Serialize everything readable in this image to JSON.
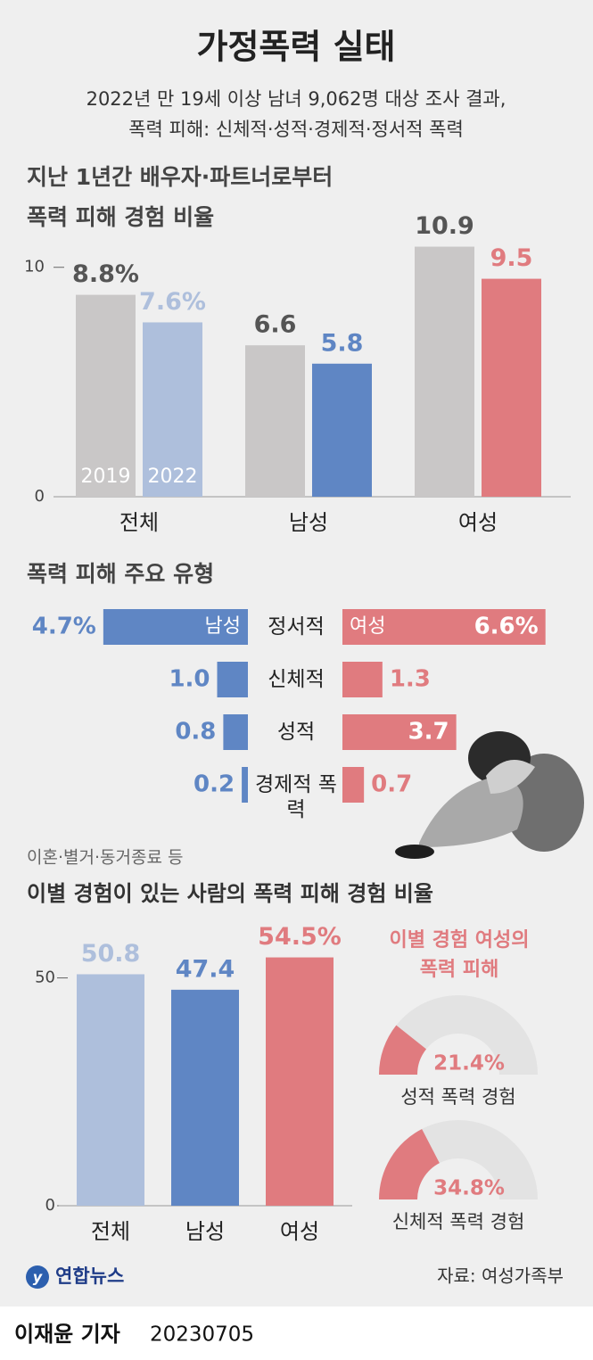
{
  "header": {
    "title": "가정폭력 실태",
    "subtitle": [
      "2022년 만 19세 이상 남녀 9,062명 대상 조사 결과,",
      "폭력 피해: 신체적·성적·경제적·정서적 폭력"
    ]
  },
  "chart_data": [
    {
      "type": "grouped-bar",
      "title": [
        "지난 1년간 배우자·파트너로부터",
        "폭력 피해 경험 비율"
      ],
      "categories": [
        "전체",
        "남성",
        "여성"
      ],
      "series": [
        {
          "name": "2019",
          "colors": [
            "#c9c7c7",
            "#c9c7c7",
            "#c9c7c7"
          ],
          "label_colors": [
            "#555555",
            "#555555",
            "#555555"
          ],
          "values": [
            8.8,
            6.6,
            10.9
          ],
          "value_labels": [
            "8.8%",
            "6.6",
            "10.9"
          ]
        },
        {
          "name": "2022",
          "colors": [
            "#aebfdc",
            "#5f86c4",
            "#e07b7f"
          ],
          "label_colors": [
            "#aebfdc",
            "#5f86c4",
            "#e07b7f"
          ],
          "values": [
            7.6,
            5.8,
            9.5
          ],
          "value_labels": [
            "7.6%",
            "5.8",
            "9.5"
          ]
        }
      ],
      "ylim": [
        0,
        11
      ],
      "yticks": [
        0,
        10
      ]
    },
    {
      "type": "diverging-bar",
      "title": "폭력 피해 주요 유형",
      "categories": [
        "정서적",
        "신체적",
        "성적",
        "경제적 폭력"
      ],
      "series": [
        {
          "name": "남성",
          "color": "#5f86c4",
          "values": [
            4.7,
            1.0,
            0.8,
            0.2
          ],
          "value_labels": [
            "4.7%",
            "1.0",
            "0.8",
            "0.2"
          ]
        },
        {
          "name": "여성",
          "color": "#e07b7f",
          "values": [
            6.6,
            1.3,
            3.7,
            0.7
          ],
          "value_labels": [
            "6.6%",
            "1.3",
            "3.7",
            "0.7"
          ]
        }
      ]
    },
    {
      "type": "bar",
      "note": "이혼·별거·동거종료 등",
      "title": "이별 경험이 있는 사람의 폭력 피해 경험 비율",
      "categories": [
        "전체",
        "남성",
        "여성"
      ],
      "values": [
        50.8,
        47.4,
        54.5
      ],
      "value_labels": [
        "50.8",
        "47.4",
        "54.5%"
      ],
      "colors": [
        "#aebfdc",
        "#5f86c4",
        "#e07b7f"
      ],
      "ylim": [
        0,
        55
      ],
      "yticks": [
        0,
        50
      ]
    },
    {
      "type": "gauge",
      "title": [
        "이별 경험 여성의",
        "폭력 피해"
      ],
      "color": "#e07b7f",
      "track_color": "#e3e3e3",
      "categories": [
        "성적 폭력 경험",
        "신체적 폭력 경험"
      ],
      "values": [
        21.4,
        34.8
      ],
      "value_labels": [
        "21.4%",
        "34.8%"
      ]
    }
  ],
  "footer": {
    "logo": "연합뉴스",
    "source": "자료: 여성가족부",
    "byline": "이재윤 기자",
    "date": "20230705"
  }
}
